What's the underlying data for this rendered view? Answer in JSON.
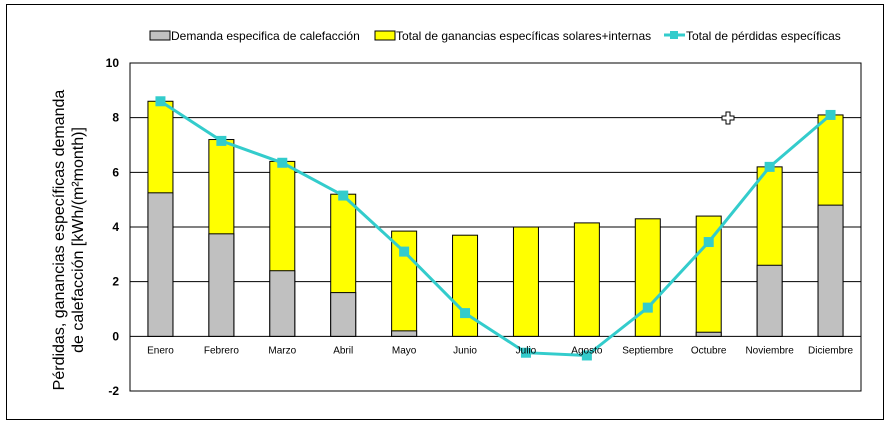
{
  "chart_data": {
    "type": "bar",
    "categories": [
      "Enero",
      "Febrero",
      "Marzo",
      "Abril",
      "Mayo",
      "Junio",
      "Julio",
      "Agosto",
      "Septiembre",
      "Octubre",
      "Noviembre",
      "Diciembre"
    ],
    "series": [
      {
        "name": "Demanda especifica de calefacción",
        "type": "bar",
        "color": "#c0c0c0",
        "values": [
          5.25,
          3.75,
          2.4,
          1.6,
          0.2,
          0,
          0,
          0,
          0,
          0.15,
          2.6,
          4.8
        ]
      },
      {
        "name": "Total de ganancias específicas solares+internas",
        "type": "bar",
        "color": "#ffff00",
        "values": [
          8.6,
          7.2,
          6.4,
          5.2,
          3.85,
          3.7,
          4.0,
          4.15,
          4.3,
          4.4,
          6.2,
          8.1
        ]
      },
      {
        "name": "Total de pérdidas específicas",
        "type": "line",
        "color": "#33cccc",
        "values": [
          8.6,
          7.15,
          6.35,
          5.15,
          3.1,
          0.85,
          -0.6,
          -0.7,
          1.05,
          3.45,
          6.2,
          8.1
        ]
      }
    ],
    "yticks": [
      "10",
      "8",
      "6",
      "4",
      "2",
      "0",
      "-2"
    ],
    "ylim": [
      -2,
      10
    ],
    "ylabel_line1": "Pérdidas, ganancias específicas demanda",
    "ylabel_line2": "de calefacción [kWh/(m²month)]",
    "grid": true,
    "legend_position": "top"
  }
}
